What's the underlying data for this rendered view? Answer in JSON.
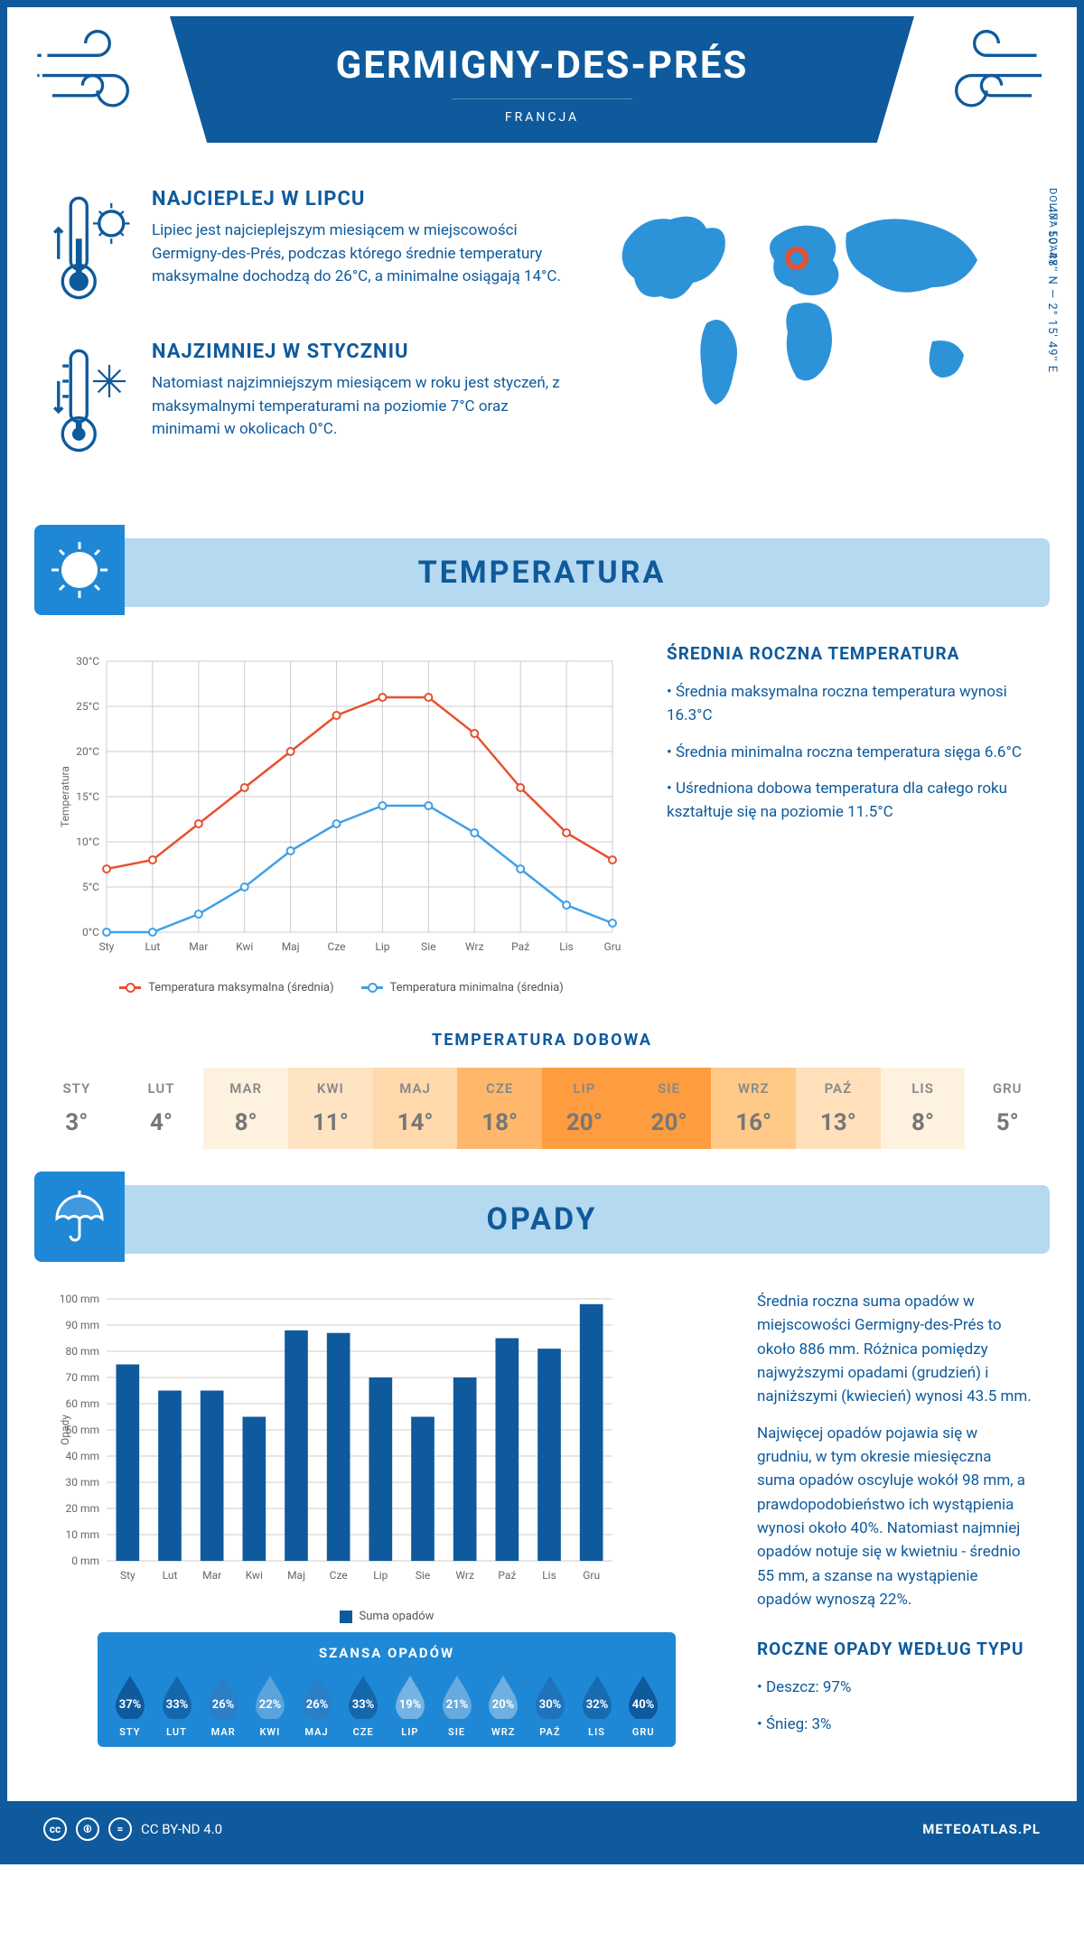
{
  "header": {
    "city": "GERMIGNY-DES-PRÉS",
    "country": "FRANCJA"
  },
  "coords": "47° 50' 48'' N — 2° 15' 49'' E",
  "region": "DOLINA LOARY",
  "warm": {
    "title": "NAJCIEPLEJ W LIPCU",
    "text": "Lipiec jest najcieplejszym miesiącem w miejscowości Germigny-des-Prés, podczas którego średnie temperatury maksymalne dochodzą do 26°C, a minimalne osiągają 14°C."
  },
  "cold": {
    "title": "NAJZIMNIEJ W STYCZNIU",
    "text": "Natomiast najzimniejszym miesiącem w roku jest styczeń, z maksymalnymi temperaturami na poziomie 7°C oraz minimami w okolicach 0°C."
  },
  "temp_section": {
    "title": "TEMPERATURA",
    "side_title": "ŚREDNIA ROCZNA TEMPERATURA",
    "bullets": [
      "Średnia maksymalna roczna temperatura wynosi 16.3°C",
      "Średnia minimalna roczna temperatura sięga 6.6°C",
      "Uśredniona dobowa temperatura dla całego roku kształtuje się na poziomie 11.5°C"
    ],
    "chart": {
      "months": [
        "Sty",
        "Lut",
        "Mar",
        "Kwi",
        "Maj",
        "Cze",
        "Lip",
        "Sie",
        "Wrz",
        "Paź",
        "Lis",
        "Gru"
      ],
      "max": [
        7,
        8,
        12,
        16,
        20,
        24,
        26,
        26,
        22,
        16,
        11,
        8
      ],
      "min": [
        0,
        0,
        2,
        5,
        9,
        12,
        14,
        14,
        11,
        7,
        3,
        1
      ],
      "max_color": "#e8502f",
      "min_color": "#3fa0e8",
      "ylim": [
        0,
        30
      ],
      "ytick": 5,
      "ylabel": "Temperatura",
      "legend_max": "Temperatura maksymalna (średnia)",
      "legend_min": "Temperatura minimalna (średnia)"
    }
  },
  "daily": {
    "title": "TEMPERATURA DOBOWA",
    "months": [
      "STY",
      "LUT",
      "MAR",
      "KWI",
      "MAJ",
      "CZE",
      "LIP",
      "SIE",
      "WRZ",
      "PAŹ",
      "LIS",
      "GRU"
    ],
    "values": [
      "3°",
      "4°",
      "8°",
      "11°",
      "14°",
      "18°",
      "20°",
      "20°",
      "16°",
      "13°",
      "8°",
      "5°"
    ],
    "colors": [
      "#ffffff",
      "#ffffff",
      "#fff1e0",
      "#ffe4c4",
      "#ffd9ab",
      "#ffb86b",
      "#ff9c3f",
      "#ff9c3f",
      "#ffc988",
      "#ffe0bb",
      "#fff1e0",
      "#ffffff"
    ]
  },
  "rain_section": {
    "title": "OPADY",
    "para1": "Średnia roczna suma opadów w miejscowości Germigny-des-Prés to około 886 mm. Różnica pomiędzy najwyższymi opadami (grudzień) i najniższymi (kwiecień) wynosi 43.5 mm.",
    "para2": "Najwięcej opadów pojawia się w grudniu, w tym okresie miesięczna suma opadów oscyluje wokół 98 mm, a prawdopodobieństwo ich wystąpienia wynosi około 40%. Natomiast najmniej opadów notuje się w kwietniu - średnio 55 mm, a szanse na wystąpienie opadów wynoszą 22%.",
    "chart": {
      "months": [
        "Sty",
        "Lut",
        "Mar",
        "Kwi",
        "Maj",
        "Cze",
        "Lip",
        "Sie",
        "Wrz",
        "Paź",
        "Lis",
        "Gru"
      ],
      "values": [
        75,
        65,
        65,
        55,
        88,
        87,
        70,
        55,
        70,
        85,
        81,
        98
      ],
      "bar_color": "#0e5a9c",
      "ylim": [
        0,
        100
      ],
      "ytick": 10,
      "ylabel": "Opady",
      "legend": "Suma opadów"
    },
    "type_title": "ROCZNE OPADY WEDŁUG TYPU",
    "type_items": [
      "Deszcz: 97%",
      "Śnieg: 3%"
    ]
  },
  "chance": {
    "title": "SZANSA OPADÓW",
    "months": [
      "STY",
      "LUT",
      "MAR",
      "KWI",
      "MAJ",
      "CZE",
      "LIP",
      "SIE",
      "WRZ",
      "PAŹ",
      "LIS",
      "GRU"
    ],
    "pct": [
      "37%",
      "33%",
      "26%",
      "22%",
      "26%",
      "33%",
      "19%",
      "21%",
      "20%",
      "30%",
      "32%",
      "40%"
    ],
    "fills": [
      "#0e5a9c",
      "#1567ac",
      "#2a7fc6",
      "#5aa3db",
      "#2a7fc6",
      "#1567ac",
      "#74b3e3",
      "#66abde",
      "#6fb0e1",
      "#1e73ba",
      "#186bb0",
      "#0e5a9c"
    ]
  },
  "footer": {
    "license": "CC BY-ND 4.0",
    "site": "METEOATLAS.PL"
  }
}
